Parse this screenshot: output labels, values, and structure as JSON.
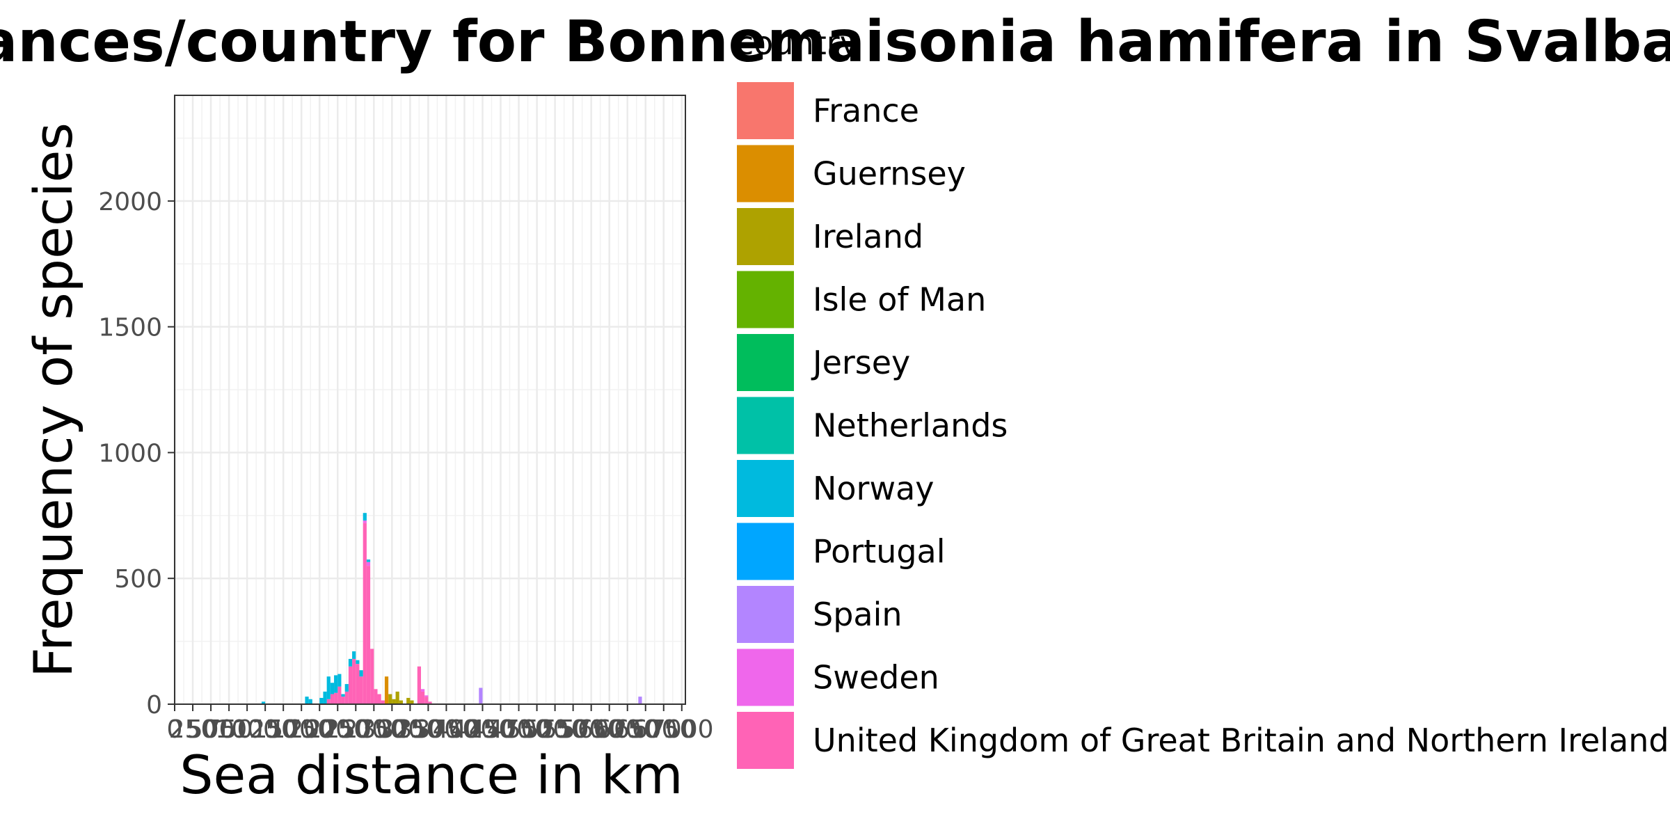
{
  "chart_data": {
    "type": "bar",
    "stacked": true,
    "title": "ances/country for Bonnemaisonia hamifera in Svalbard",
    "xlabel": "Sea distance in km",
    "ylabel": "Frequency of species",
    "legend_title": "country",
    "legend_position": "right",
    "grid": true,
    "ylim": [
      0,
      2420
    ],
    "xlim": [
      0,
      7050
    ],
    "y_ticks": [
      0,
      500,
      1000,
      1500,
      2000
    ],
    "x_ticks": [
      0,
      250,
      500,
      750,
      1000,
      1250,
      1500,
      1750,
      2000,
      2250,
      2500,
      2750,
      3000,
      3250,
      3500,
      3750,
      4000,
      4250,
      4500,
      4750,
      5000,
      5250,
      5500,
      5750,
      6000,
      6250,
      6500,
      6750,
      7000
    ],
    "x_tick_labels": [
      "0",
      "250",
      "500",
      "750",
      "1000",
      "1250",
      "1500",
      "1750",
      "2000",
      "2250",
      "2500",
      "2750",
      "3000",
      "3250",
      "3500",
      "3750",
      "4000",
      "4250",
      "4500",
      "4750",
      "5000",
      "5250",
      "5500",
      "5750",
      "6000",
      "6250",
      "6500",
      "6750",
      "7000"
    ],
    "bin_width": 50,
    "series": [
      {
        "name": "France",
        "color": "#F8766D",
        "bars": []
      },
      {
        "name": "Guernsey",
        "color": "#DB8E00",
        "bars": [
          {
            "x": 2925,
            "y": 110
          }
        ]
      },
      {
        "name": "Ireland",
        "color": "#AEA200",
        "bars": [
          {
            "x": 2975,
            "y": 40
          },
          {
            "x": 3025,
            "y": 20
          },
          {
            "x": 3075,
            "y": 50
          },
          {
            "x": 3125,
            "y": 15
          },
          {
            "x": 3225,
            "y": 25
          },
          {
            "x": 3275,
            "y": 15
          }
        ]
      },
      {
        "name": "Isle of Man",
        "color": "#64B200",
        "bars": []
      },
      {
        "name": "Jersey",
        "color": "#00BD5C",
        "bars": []
      },
      {
        "name": "Netherlands",
        "color": "#00C1A7",
        "bars": []
      },
      {
        "name": "Norway",
        "color": "#00BADE",
        "bars": [
          {
            "x": 1225,
            "y": 10
          },
          {
            "x": 1825,
            "y": 30
          },
          {
            "x": 1875,
            "y": 20
          },
          {
            "x": 2025,
            "y": 25
          },
          {
            "x": 2075,
            "y": 50
          },
          {
            "x": 2125,
            "y": 90
          },
          {
            "x": 2175,
            "y": 45
          },
          {
            "x": 2225,
            "y": 70
          },
          {
            "x": 2275,
            "y": 50
          },
          {
            "x": 2325,
            "y": 10
          },
          {
            "x": 2375,
            "y": 30
          },
          {
            "x": 2425,
            "y": 30
          },
          {
            "x": 2475,
            "y": 30
          },
          {
            "x": 2525,
            "y": 15
          },
          {
            "x": 2575,
            "y": 25
          },
          {
            "x": 2625,
            "y": 30
          },
          {
            "x": 2675,
            "y": 10
          }
        ]
      },
      {
        "name": "Portugal",
        "color": "#00A6FF",
        "bars": []
      },
      {
        "name": "Spain",
        "color": "#B385FF",
        "bars": [
          {
            "x": 4225,
            "y": 65
          },
          {
            "x": 6425,
            "y": 30
          }
        ]
      },
      {
        "name": "Sweden",
        "color": "#EF67EB",
        "bars": [
          {
            "x": 2625,
            "y": 10
          },
          {
            "x": 2675,
            "y": 15
          },
          {
            "x": 3425,
            "y": 10
          },
          {
            "x": 3475,
            "y": 5
          }
        ]
      },
      {
        "name": "United Kingdom of Great Britain and Northern Ireland",
        "color": "#FF63B6",
        "bars": [
          {
            "x": 2125,
            "y": 20
          },
          {
            "x": 2175,
            "y": 40
          },
          {
            "x": 2225,
            "y": 45
          },
          {
            "x": 2275,
            "y": 70
          },
          {
            "x": 2325,
            "y": 30
          },
          {
            "x": 2375,
            "y": 50
          },
          {
            "x": 2425,
            "y": 150
          },
          {
            "x": 2475,
            "y": 180
          },
          {
            "x": 2525,
            "y": 160
          },
          {
            "x": 2575,
            "y": 110
          },
          {
            "x": 2625,
            "y": 720
          },
          {
            "x": 2675,
            "y": 550
          },
          {
            "x": 2725,
            "y": 220
          },
          {
            "x": 2775,
            "y": 60
          },
          {
            "x": 2825,
            "y": 40
          },
          {
            "x": 2875,
            "y": 15
          },
          {
            "x": 3375,
            "y": 150
          },
          {
            "x": 3425,
            "y": 50
          },
          {
            "x": 3475,
            "y": 30
          },
          {
            "x": 3525,
            "y": 10
          }
        ]
      }
    ]
  }
}
